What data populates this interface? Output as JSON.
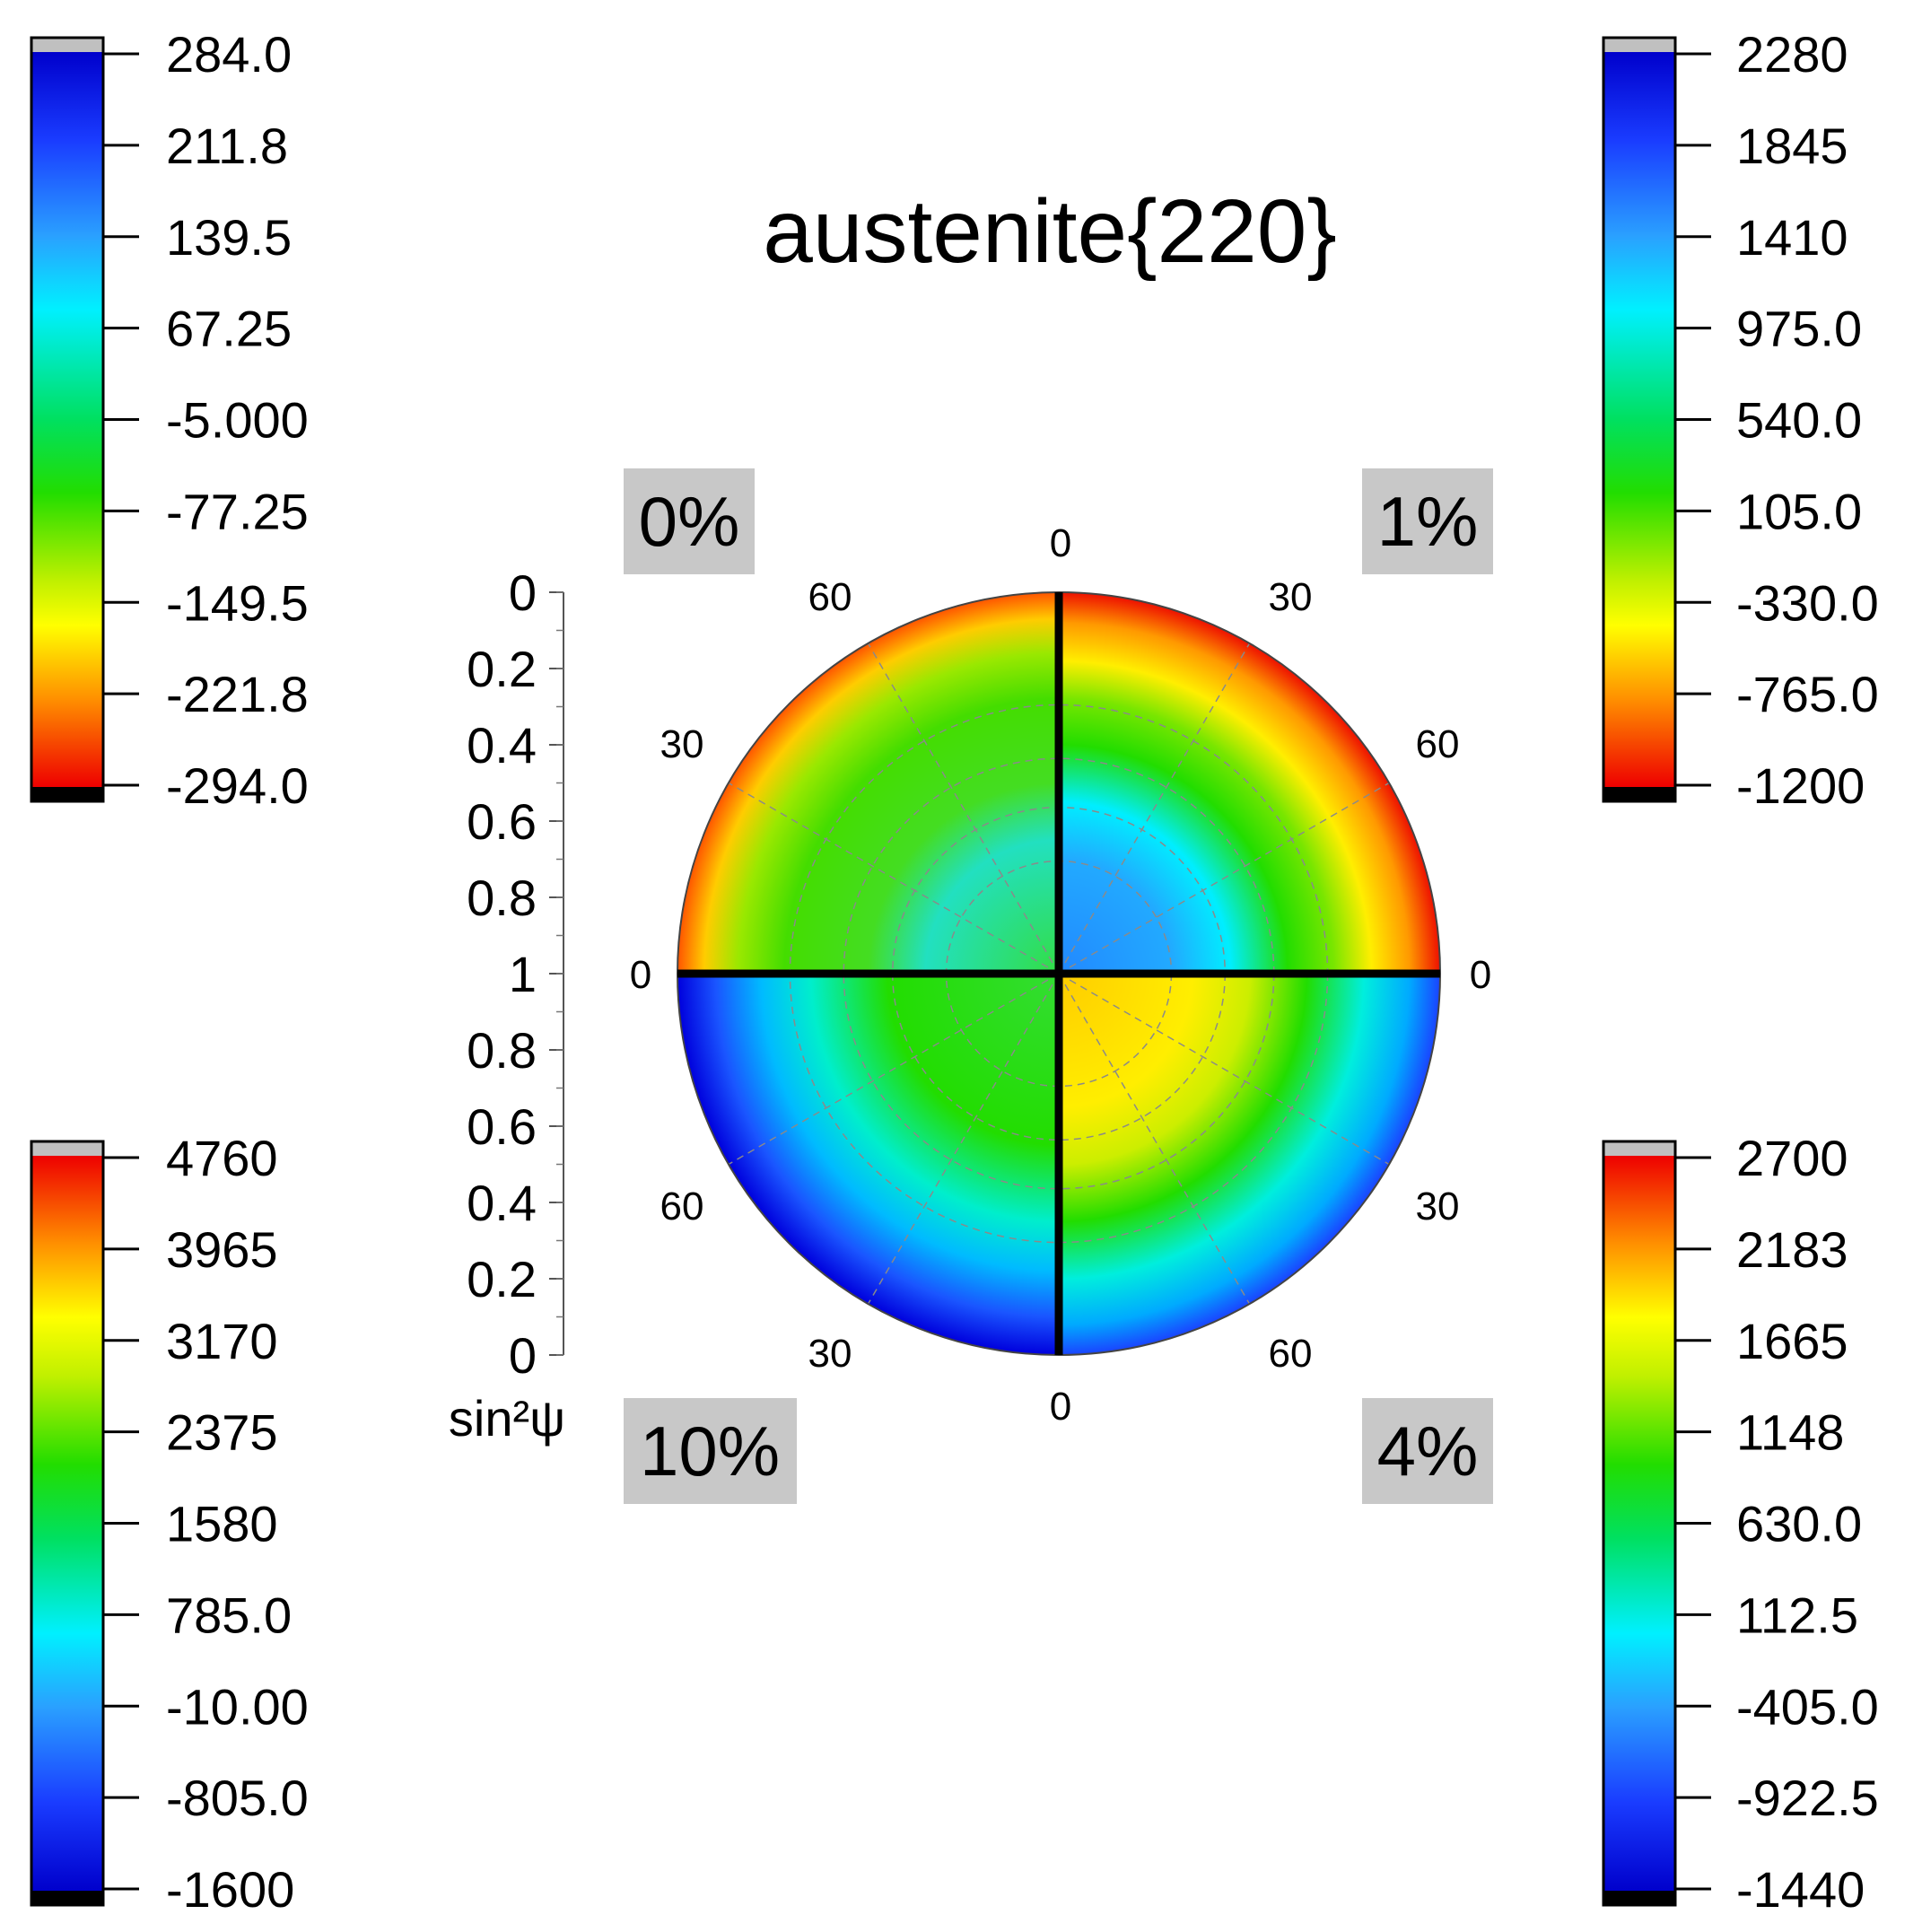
{
  "chart_data": {
    "type": "polar-contour",
    "title": "austenite{220}",
    "radial_axis": {
      "label": "sin²ψ",
      "ticks_upper": [
        "0",
        "0.2",
        "0.4",
        "0.6",
        "0.8",
        "1"
      ],
      "ticks_lower": [
        "0.8",
        "0.6",
        "0.4",
        "0.2",
        "0"
      ],
      "range": [
        0,
        1
      ]
    },
    "angle_labels": {
      "top": "0",
      "bottom": "0",
      "left": "0",
      "right": "0",
      "upper_left_outer": "60",
      "upper_left_inner": "30",
      "upper_right_outer": "30",
      "upper_right_inner": "60",
      "lower_left_outer": "60",
      "lower_left_inner": "30",
      "lower_right_outer": "30",
      "lower_right_inner": "60"
    },
    "quadrants": [
      {
        "name": "0%",
        "position": "upper-left",
        "colorbar": {
          "position": "top-left",
          "ticks": [
            "284.0",
            "211.8",
            "139.5",
            "67.25",
            "-5.000",
            "-77.25",
            "-149.5",
            "-221.8",
            "-294.0"
          ],
          "max_color": "blue",
          "min_color": "red"
        },
        "pattern": "green interior with cyan/blue patch near center, yellow-orange-red ring at rim"
      },
      {
        "name": "1%",
        "position": "upper-right",
        "colorbar": {
          "position": "top-right",
          "ticks": [
            "2280",
            "1845",
            "1410",
            "975.0",
            "540.0",
            "105.0",
            "-330.0",
            "-765.0",
            "-1200"
          ],
          "max_color": "blue",
          "min_color": "red"
        },
        "pattern": "blue/cyan center, green middle ring, yellow-orange-red rim"
      },
      {
        "name": "10%",
        "position": "lower-left",
        "colorbar": {
          "position": "bottom-left",
          "ticks": [
            "4760",
            "3965",
            "3170",
            "2375",
            "1580",
            "785.0",
            "-10.00",
            "-805.0",
            "-1600"
          ],
          "max_color": "red",
          "min_color": "blue"
        },
        "pattern": "green center, cyan ring, blue rim"
      },
      {
        "name": "4%",
        "position": "lower-right",
        "colorbar": {
          "position": "bottom-right",
          "ticks": [
            "2700",
            "2183",
            "1665",
            "1148",
            "630.0",
            "112.5",
            "-405.0",
            "-922.5",
            "-1440"
          ],
          "max_color": "red",
          "min_color": "blue"
        },
        "pattern": "yellow/orange center, green ring, cyan-blue rim"
      }
    ]
  }
}
